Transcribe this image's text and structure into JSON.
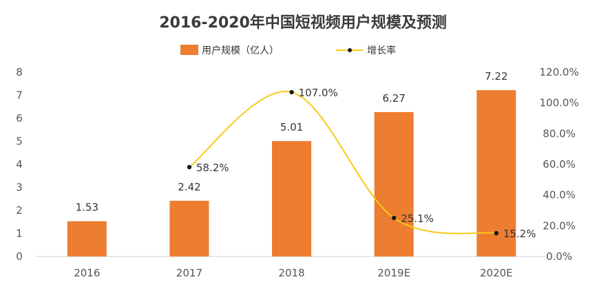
{
  "chart_data": {
    "type": "bar",
    "title": "2016-2020年中国短视频用户规模及预测",
    "categories": [
      "2016",
      "2017",
      "2018",
      "2019E",
      "2020E"
    ],
    "ylim": [
      0,
      8
    ],
    "y_ticks": [
      "0",
      "1",
      "2",
      "3",
      "4",
      "5",
      "6",
      "7",
      "8"
    ],
    "y2lim": [
      0,
      120
    ],
    "y2_ticks": [
      "0.0%",
      "20.0%",
      "40.0%",
      "60.0%",
      "80.0%",
      "100.0%",
      "120.0%"
    ],
    "legend_position": "top",
    "grid": false,
    "series": [
      {
        "name": "用户规模（亿人）",
        "type": "bar",
        "axis": "left",
        "color": "#ED7D31",
        "values": [
          1.53,
          2.42,
          5.01,
          6.27,
          7.22
        ],
        "labels": [
          "1.53",
          "2.42",
          "5.01",
          "6.27",
          "7.22"
        ]
      },
      {
        "name": "增长率",
        "type": "line",
        "axis": "right",
        "color": "#F5CB16",
        "marker_color": "#1a1a1a",
        "x": [
          "2017",
          "2018",
          "2019E",
          "2020E"
        ],
        "values": [
          58.2,
          107.0,
          25.1,
          15.2
        ],
        "labels": [
          "58.2%",
          "107.0%",
          "25.1%",
          "15.2%"
        ]
      }
    ]
  }
}
